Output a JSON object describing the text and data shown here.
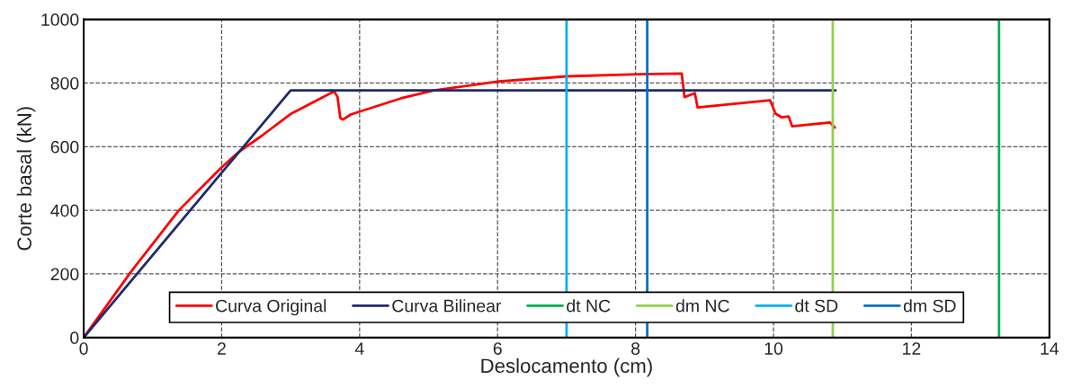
{
  "chart_data": {
    "type": "line",
    "xlabel": "Deslocamento (cm)",
    "ylabel": "Corte basal (kN)",
    "series": [
      {
        "name": "Curva Original",
        "color": "#ff0000",
        "x": [
          0,
          0.69,
          1.38,
          1.98,
          2.24,
          2.58,
          3.01,
          3.63,
          3.68,
          3.72,
          3.76,
          3.87,
          4.6,
          5.08,
          6.02,
          7.0,
          8.05,
          8.67,
          8.71,
          8.86,
          8.9,
          9.95,
          10.03,
          10.12,
          10.22,
          10.27,
          10.82,
          10.89
        ],
        "values": [
          0,
          208,
          400,
          531,
          582,
          634,
          704,
          774,
          756,
          690,
          685,
          701,
          752,
          777,
          805,
          821,
          828,
          830,
          756,
          768,
          723,
          746,
          704,
          692,
          695,
          664,
          676,
          660
        ]
      },
      {
        "name": "Curva Bilinear",
        "color": "#1f2a6b",
        "x": [
          0,
          3.0,
          10.9
        ],
        "values": [
          0,
          777,
          777
        ]
      },
      {
        "name": "dt NC",
        "color": "#00b050",
        "x": [
          13.27,
          13.27
        ],
        "values": [
          0,
          1000
        ]
      },
      {
        "name": "dm NC",
        "color": "#92d050",
        "x": [
          10.86,
          10.86
        ],
        "values": [
          0,
          1000
        ]
      },
      {
        "name": "dt SD",
        "color": "#00b0f0",
        "x": [
          7.0,
          7.0
        ],
        "values": [
          0,
          1000
        ]
      },
      {
        "name": "dm SD",
        "color": "#0070c0",
        "x": [
          8.17,
          8.17
        ],
        "values": [
          0,
          1000
        ]
      }
    ],
    "xlim": [
      0,
      14
    ],
    "xticks": [
      0,
      2,
      4,
      6,
      8,
      10,
      12,
      14
    ],
    "ylim": [
      0,
      1000
    ],
    "yticks": [
      0,
      200,
      400,
      600,
      800,
      1000
    ],
    "grid": true,
    "legend": "bottom",
    "marker": "none",
    "line_style": "solid"
  }
}
